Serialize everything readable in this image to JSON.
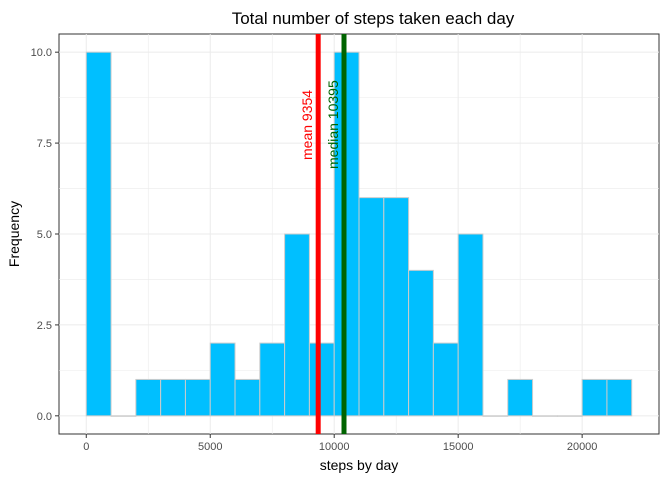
{
  "chart_data": {
    "type": "bar",
    "title": "Total number of steps taken each day",
    "xlabel": "steps by day",
    "ylabel": "Frequency",
    "bin_width": 1000,
    "bins": [
      {
        "start": 0,
        "end": 1000,
        "count": 10
      },
      {
        "start": 1000,
        "end": 2000,
        "count": 0
      },
      {
        "start": 2000,
        "end": 3000,
        "count": 1
      },
      {
        "start": 3000,
        "end": 4000,
        "count": 1
      },
      {
        "start": 4000,
        "end": 5000,
        "count": 1
      },
      {
        "start": 5000,
        "end": 6000,
        "count": 2
      },
      {
        "start": 6000,
        "end": 7000,
        "count": 1
      },
      {
        "start": 7000,
        "end": 8000,
        "count": 2
      },
      {
        "start": 8000,
        "end": 9000,
        "count": 5
      },
      {
        "start": 9000,
        "end": 10000,
        "count": 2
      },
      {
        "start": 10000,
        "end": 11000,
        "count": 10
      },
      {
        "start": 11000,
        "end": 12000,
        "count": 6
      },
      {
        "start": 12000,
        "end": 13000,
        "count": 6
      },
      {
        "start": 13000,
        "end": 14000,
        "count": 4
      },
      {
        "start": 14000,
        "end": 15000,
        "count": 2
      },
      {
        "start": 15000,
        "end": 16000,
        "count": 5
      },
      {
        "start": 16000,
        "end": 17000,
        "count": 0
      },
      {
        "start": 17000,
        "end": 18000,
        "count": 1
      },
      {
        "start": 18000,
        "end": 19000,
        "count": 0
      },
      {
        "start": 19000,
        "end": 20000,
        "count": 0
      },
      {
        "start": 20000,
        "end": 21000,
        "count": 1
      },
      {
        "start": 21000,
        "end": 22000,
        "count": 1
      }
    ],
    "xlim": [
      -1100,
      23100
    ],
    "ylim": [
      -0.5,
      10.5
    ],
    "x_ticks": [
      0,
      5000,
      10000,
      15000,
      20000
    ],
    "x_tick_labels": [
      "0",
      "5000",
      "10000",
      "15000",
      "20000"
    ],
    "y_ticks": [
      0,
      2.5,
      5,
      7.5,
      10
    ],
    "y_tick_labels": [
      "0.0",
      "2.5",
      "5.0",
      "7.5",
      "10.0"
    ],
    "reference_lines": [
      {
        "label": "mean 9354",
        "x": 9354,
        "color": "#ff0000"
      },
      {
        "label": "median 10395",
        "x": 10395,
        "color": "#006400"
      }
    ],
    "bar_fill": "#00bfff",
    "bar_outline": "#cccccc",
    "grid": true,
    "legend": "none"
  }
}
